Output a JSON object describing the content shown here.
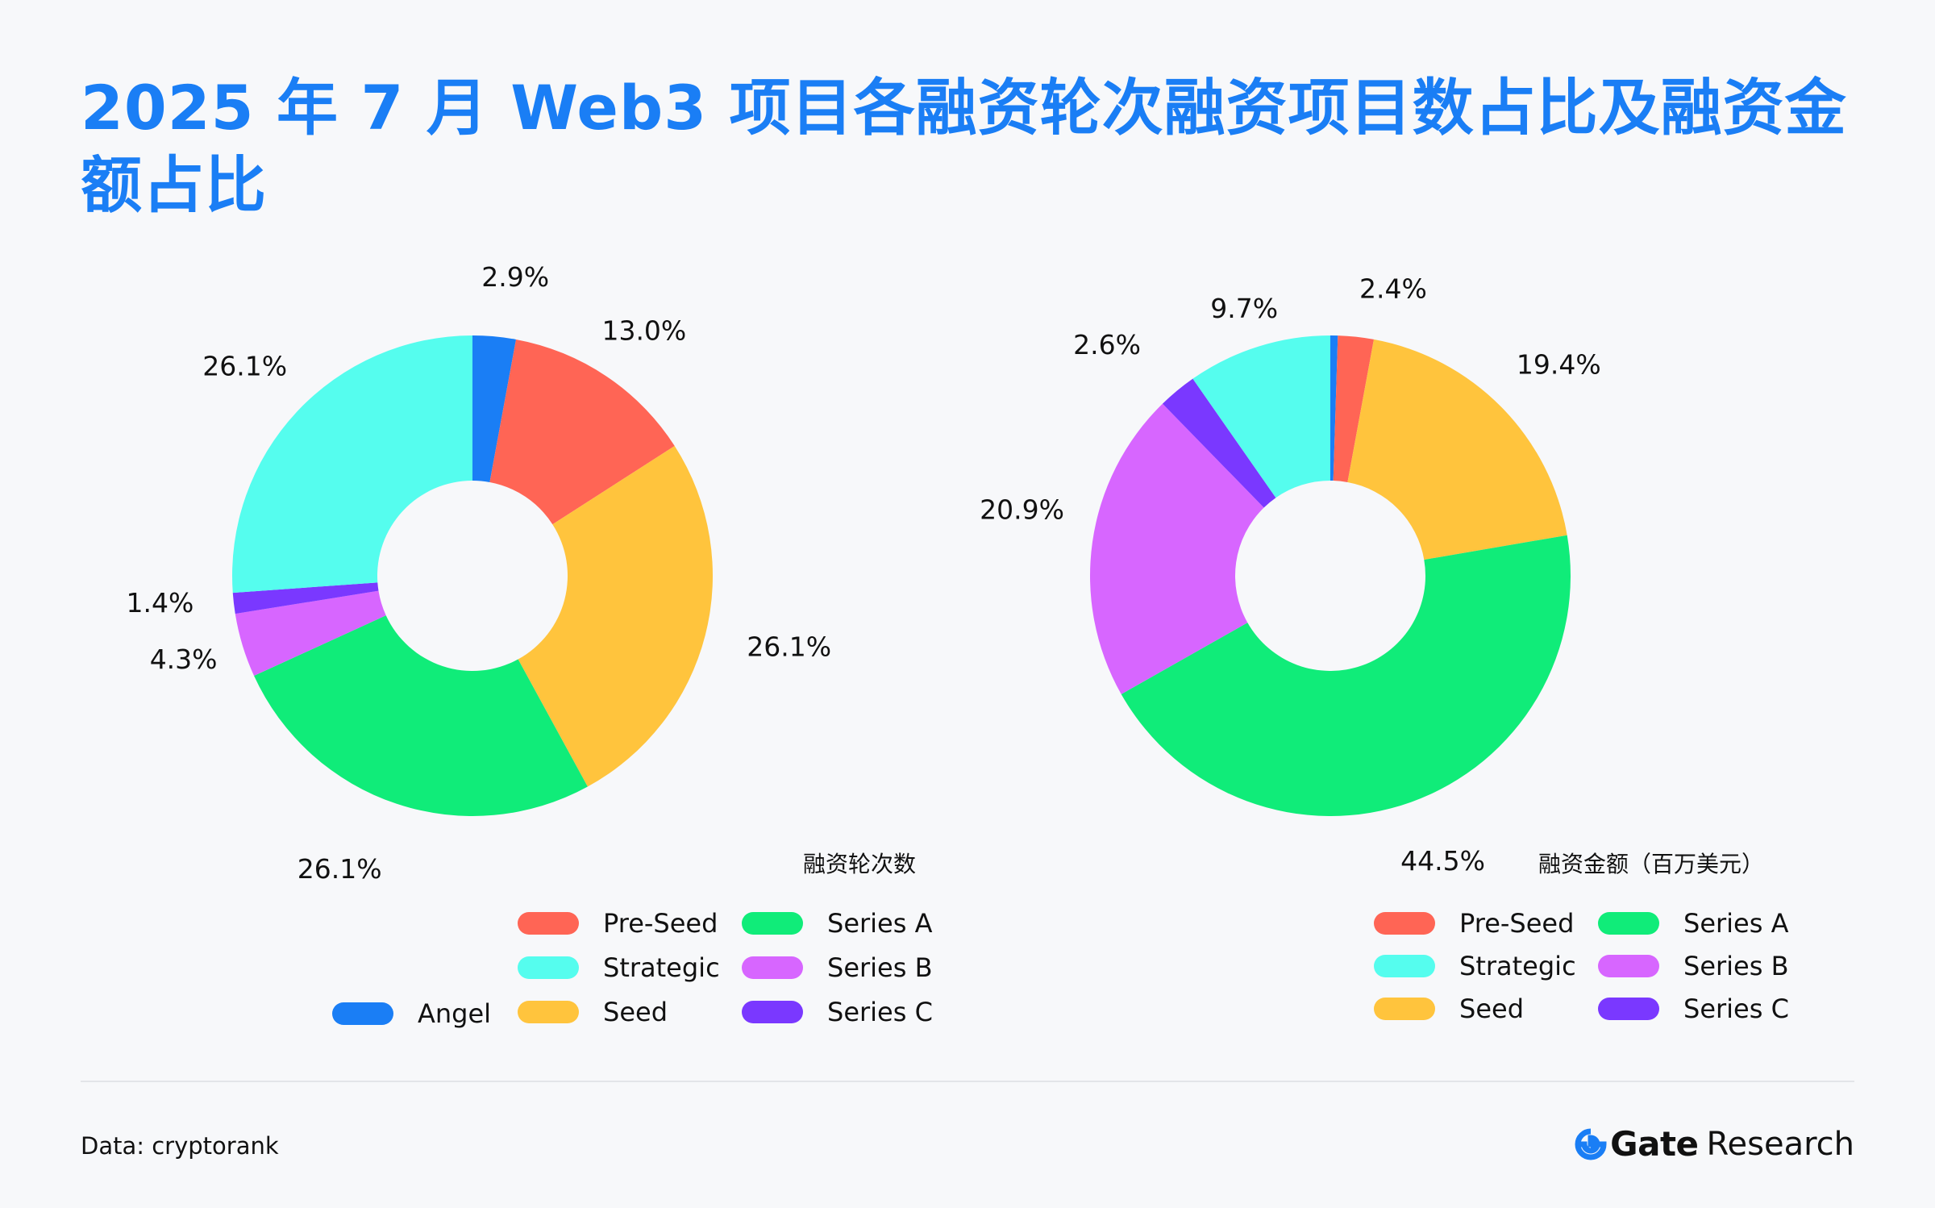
{
  "title": "2025 年 7 月 Web3 项目各融资轮次融资项目数占比及融资金额占比",
  "colors": {
    "Angel": "#1a7ef5",
    "Pre-Seed": "#ff6555",
    "Seed": "#ffc43d",
    "Series A": "#10ec79",
    "Series B": "#d766ff",
    "Series C": "#7a38ff",
    "Strategic": "#55fdee"
  },
  "chart_data": [
    {
      "type": "pie",
      "caption": "融资轮次数",
      "categories": [
        "Angel",
        "Pre-Seed",
        "Seed",
        "Series A",
        "Series B",
        "Series C",
        "Strategic"
      ],
      "values": [
        2.9,
        13.0,
        26.1,
        26.1,
        4.3,
        1.4,
        26.1
      ],
      "labels": [
        "2.9%",
        "13.0%",
        "26.1%",
        "26.1%",
        "4.3%",
        "1.4%",
        "26.1%"
      ],
      "legend": [
        "Pre-Seed",
        "Series A",
        "Strategic",
        "Series B",
        "Angel",
        "Seed",
        "Series C"
      ]
    },
    {
      "type": "pie",
      "caption": "融资金额（百万美元）",
      "categories": [
        "Angel",
        "Pre-Seed",
        "Seed",
        "Series A",
        "Series B",
        "Series C",
        "Strategic"
      ],
      "values": [
        0.5,
        2.4,
        19.4,
        44.5,
        20.9,
        2.6,
        9.7
      ],
      "labels": [
        "",
        "2.4%",
        "19.4%",
        "44.5%",
        "20.9%",
        "2.6%",
        "9.7%"
      ],
      "legend": [
        "Pre-Seed",
        "Series A",
        "Strategic",
        "Series B",
        "Seed",
        "Series C"
      ]
    }
  ],
  "footer": {
    "source": "Data: cryptorank",
    "brand": "Gate",
    "brand_sub": "Research"
  }
}
